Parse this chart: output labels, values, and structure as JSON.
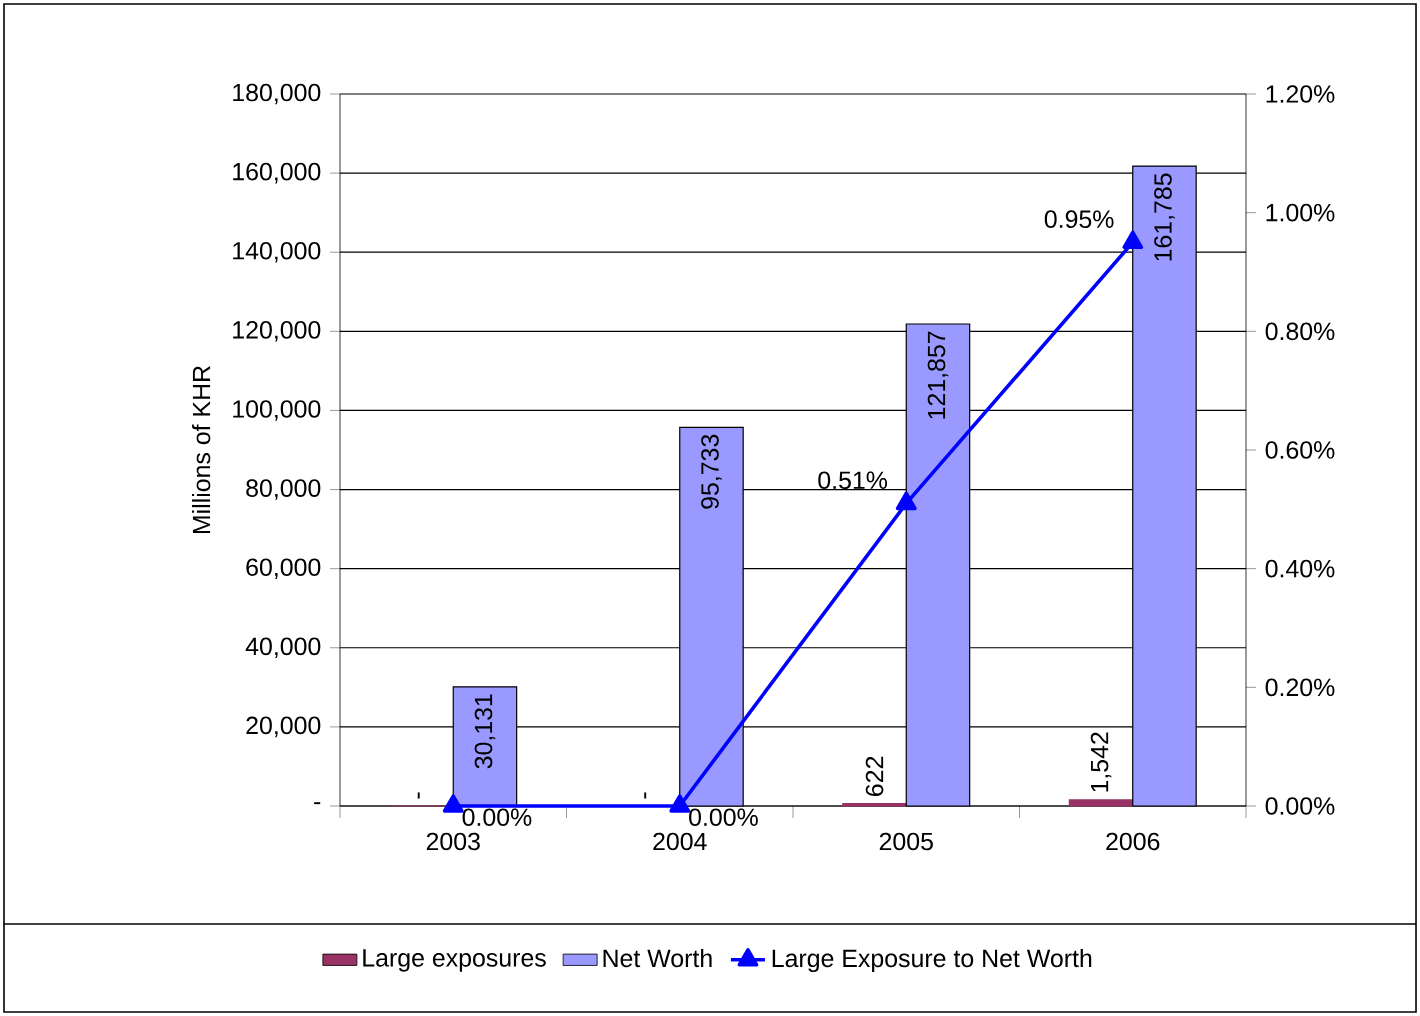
{
  "chart_data": {
    "type": "bar",
    "categories": [
      "2003",
      "2004",
      "2005",
      "2006"
    ],
    "ylabel": "Millions of KHR",
    "ylim": [
      0,
      180000
    ],
    "yticks": [
      {
        "value": 0,
        "label": "-"
      },
      {
        "value": 20000,
        "label": "20,000"
      },
      {
        "value": 40000,
        "label": "40,000"
      },
      {
        "value": 60000,
        "label": "60,000"
      },
      {
        "value": 80000,
        "label": "80,000"
      },
      {
        "value": 100000,
        "label": "100,000"
      },
      {
        "value": 120000,
        "label": "120,000"
      },
      {
        "value": 140000,
        "label": "140,000"
      },
      {
        "value": 160000,
        "label": "160,000"
      },
      {
        "value": 180000,
        "label": "180,000"
      }
    ],
    "y2lim": [
      0,
      1.2
    ],
    "y2ticks": [
      {
        "value": 0,
        "label": "0.00%"
      },
      {
        "value": 0.2,
        "label": "0.20%"
      },
      {
        "value": 0.4,
        "label": "0.40%"
      },
      {
        "value": 0.6,
        "label": "0.60%"
      },
      {
        "value": 0.8,
        "label": "0.80%"
      },
      {
        "value": 1.0,
        "label": "1.00%"
      },
      {
        "value": 1.2,
        "label": "1.20%"
      }
    ],
    "grid": "y",
    "legend": "bottom",
    "marker": "triangle",
    "line_style": "solid",
    "series": [
      {
        "name": "Large exposures",
        "color": "#993366",
        "values": [
          0,
          0,
          622,
          1542
        ],
        "value_labels": [
          "-",
          "-",
          "622",
          "1,542"
        ]
      },
      {
        "name": "Net Worth",
        "color": "#9999ff",
        "values": [
          30131,
          95733,
          121857,
          161785
        ],
        "value_labels": [
          "30,131",
          "95,733",
          "121,857",
          "161,785"
        ]
      },
      {
        "name": "Large Exposure to Net Worth",
        "type": "line",
        "axis": "y2",
        "color": "#0000ff",
        "values": [
          0,
          0,
          0.51,
          0.95
        ],
        "value_labels": [
          "0.00%",
          "0.00%",
          "0.51%",
          "0.95%"
        ]
      }
    ]
  }
}
